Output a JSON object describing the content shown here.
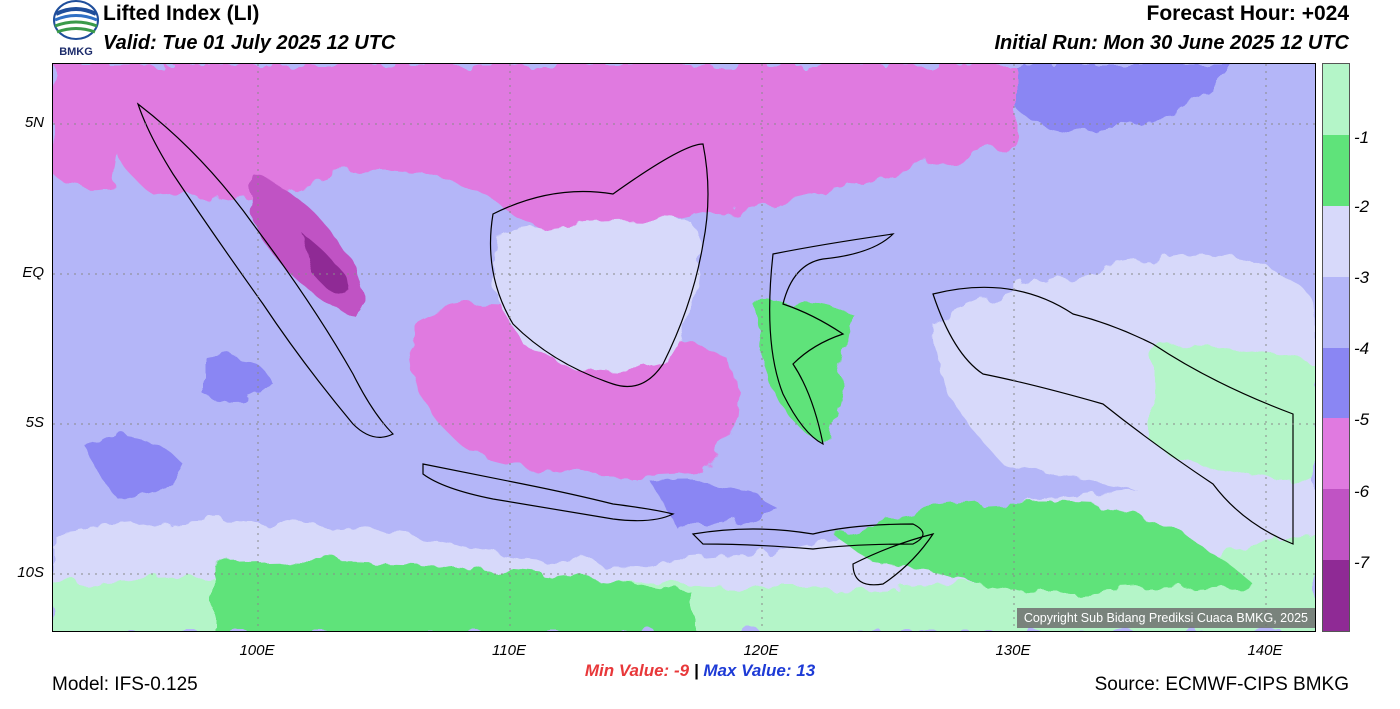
{
  "header": {
    "title": "Lifted Index (LI)",
    "valid": "Valid: Tue 01 July 2025 12 UTC",
    "forecast_hour": "Forecast Hour: +024",
    "initial_run": "Initial Run: Mon 30 June 2025 12 UTC"
  },
  "logo": {
    "text": "BMKG"
  },
  "axes": {
    "lat_ticks": [
      "5N",
      "EQ",
      "5S",
      "10S"
    ],
    "lon_ticks": [
      "100E",
      "110E",
      "120E",
      "130E",
      "140E"
    ]
  },
  "colorbar": {
    "labels": [
      "-1",
      "-2",
      "-3",
      "-4",
      "-5",
      "-6",
      "-7"
    ],
    "colors": [
      "#b4f5c8",
      "#5fe37a",
      "#d7d9fa",
      "#b4b6f8",
      "#8a86f3",
      "#e07ae0",
      "#c053c4",
      "#8f2a95"
    ]
  },
  "stats": {
    "min_label": "Min Value:",
    "min_value": "-9",
    "separator": "|",
    "max_label": "Max Value:",
    "max_value": "13"
  },
  "footer": {
    "model": "Model: IFS-0.125",
    "source": "Source: ECMWF-CIPS BMKG",
    "copyright": "Copyright Sub Bidang Prediksi Cuaca BMKG, 2025"
  }
}
